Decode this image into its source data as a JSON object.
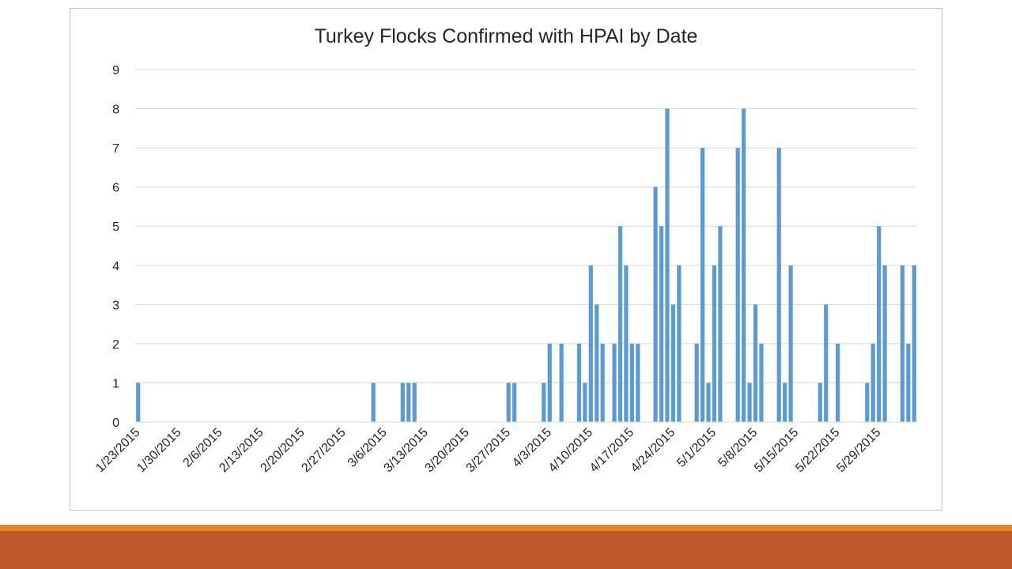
{
  "colors": {
    "bar": "#5b9bd5",
    "footer_top": "#e0892a",
    "footer_bottom": "#bc582b"
  },
  "chart_data": {
    "type": "bar",
    "title": "Turkey Flocks Confirmed with HPAI by Date",
    "xlabel": "",
    "ylabel": "",
    "ylim": [
      0,
      9
    ],
    "yticks": [
      "0",
      "1",
      "2",
      "3",
      "4",
      "5",
      "6",
      "7",
      "8",
      "9"
    ],
    "grid": "horizontal",
    "legend": "none",
    "x_tick_labels": [
      "1/23/2015",
      "1/30/2015",
      "2/6/2015",
      "2/13/2015",
      "2/20/2015",
      "2/27/2015",
      "3/6/2015",
      "3/13/2015",
      "3/20/2015",
      "3/27/2015",
      "4/3/2015",
      "4/10/2015",
      "4/17/2015",
      "4/24/2015",
      "5/1/2015",
      "5/8/2015",
      "5/15/2015",
      "5/22/2015",
      "5/29/2015"
    ],
    "x": [
      "1/23/2015",
      "3/4/2015",
      "3/9/2015",
      "3/10/2015",
      "3/11/2015",
      "3/27/2015",
      "3/28/2015",
      "4/2/2015",
      "4/3/2015",
      "4/5/2015",
      "4/8/2015",
      "4/9/2015",
      "4/10/2015",
      "4/11/2015",
      "4/12/2015",
      "4/14/2015",
      "4/15/2015",
      "4/16/2015",
      "4/17/2015",
      "4/18/2015",
      "4/21/2015",
      "4/22/2015",
      "4/23/2015",
      "4/24/2015",
      "4/25/2015",
      "4/28/2015",
      "4/29/2015",
      "4/30/2015",
      "5/1/2015",
      "5/2/2015",
      "5/5/2015",
      "5/6/2015",
      "5/7/2015",
      "5/8/2015",
      "5/9/2015",
      "5/12/2015",
      "5/13/2015",
      "5/14/2015",
      "5/19/2015",
      "5/20/2015",
      "5/22/2015",
      "5/27/2015",
      "5/28/2015",
      "5/29/2015",
      "5/30/2015",
      "6/2/2015",
      "6/3/2015",
      "6/4/2015"
    ],
    "values": [
      1,
      1,
      1,
      1,
      1,
      1,
      1,
      1,
      2,
      2,
      2,
      1,
      4,
      3,
      2,
      2,
      5,
      4,
      2,
      2,
      6,
      5,
      8,
      3,
      4,
      2,
      7,
      1,
      4,
      5,
      7,
      8,
      1,
      3,
      2,
      7,
      1,
      4,
      1,
      3,
      2,
      1,
      2,
      5,
      4,
      4,
      2,
      4
    ]
  }
}
